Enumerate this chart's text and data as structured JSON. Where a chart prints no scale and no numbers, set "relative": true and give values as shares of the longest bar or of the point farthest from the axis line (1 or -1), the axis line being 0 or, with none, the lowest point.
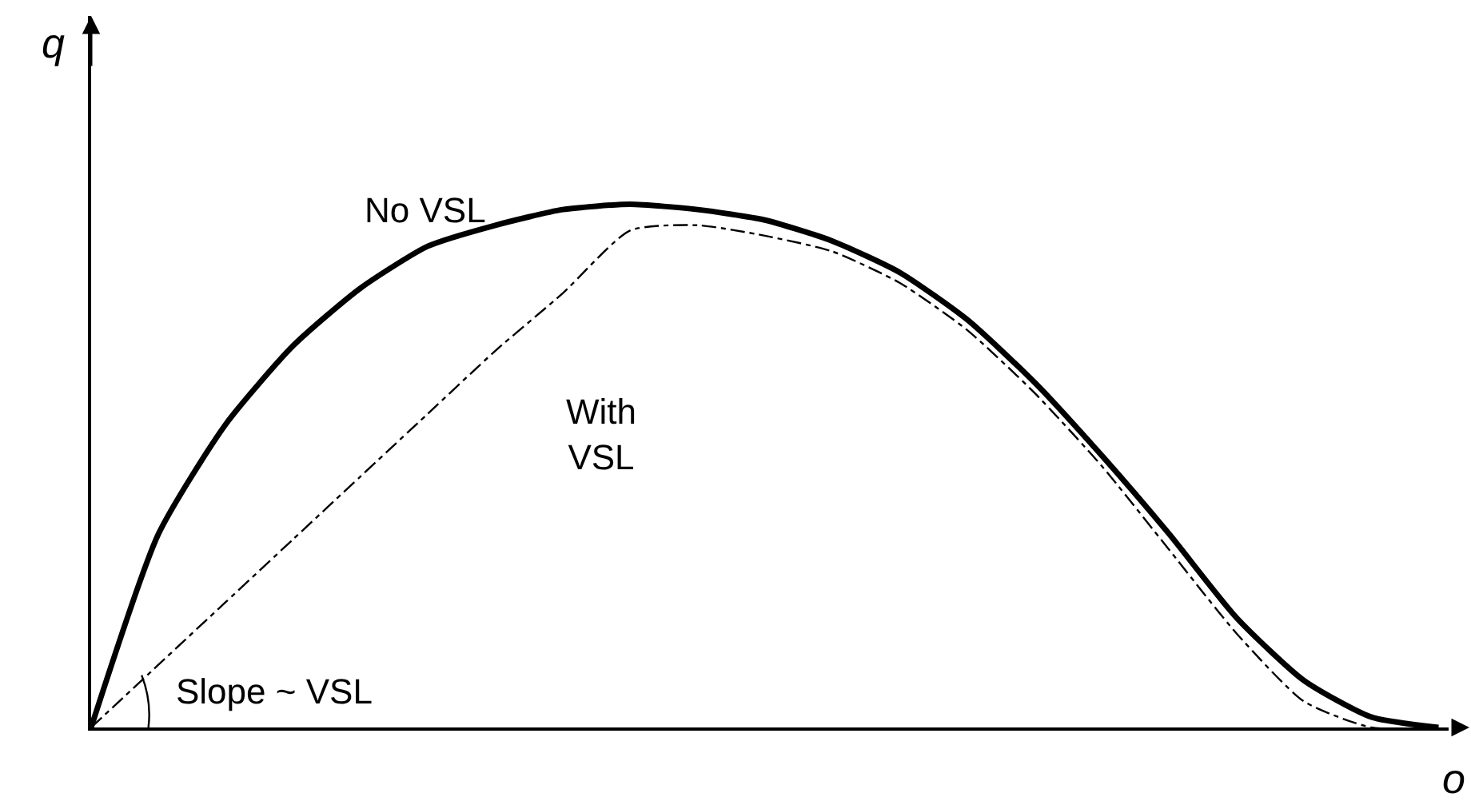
{
  "chart_data": {
    "type": "line",
    "relative": true,
    "xlabel": "o",
    "ylabel": "q",
    "categories": [
      null,
      null,
      null,
      null,
      null,
      null,
      null,
      null,
      null,
      null,
      null,
      null,
      null,
      null,
      null,
      null,
      null,
      null,
      null,
      null,
      null
    ],
    "series": [
      {
        "name": "No VSL",
        "color": "#000000",
        "line_style": "solid",
        "values": [
          0,
          0.37,
          0.58,
          0.73,
          0.84,
          0.92,
          0.96,
          0.99,
          1.0,
          0.99,
          0.97,
          0.93,
          0.87,
          0.78,
          0.66,
          0.52,
          0.37,
          0.21,
          0.09,
          0.02,
          0
        ]
      },
      {
        "name": "With VSL",
        "color": "#000000",
        "line_style": "dashed",
        "values": [
          0,
          0.12,
          0.24,
          0.36,
          0.48,
          0.6,
          0.72,
          0.83,
          0.95,
          0.96,
          0.94,
          0.91,
          0.85,
          0.76,
          0.64,
          0.5,
          0.34,
          0.18,
          0.05,
          0,
          0
        ]
      }
    ],
    "annotations": [
      "Slope ~ VSL"
    ],
    "legend": false,
    "marker": "none"
  }
}
